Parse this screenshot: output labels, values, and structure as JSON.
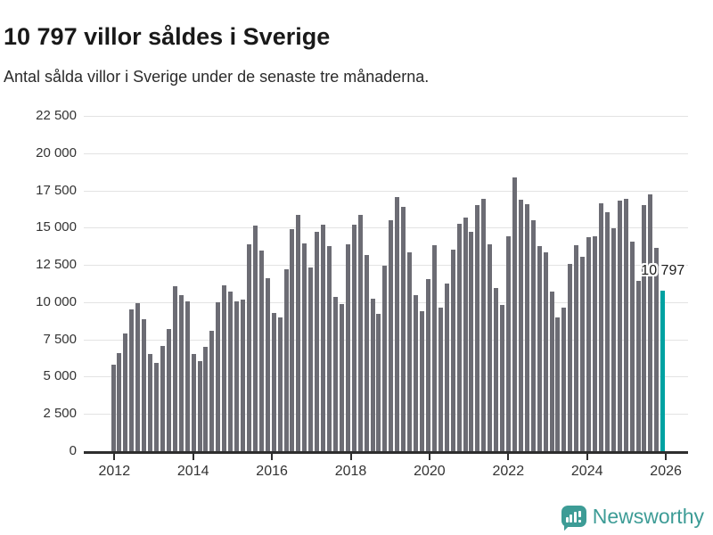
{
  "header": {
    "title": "10 797 villor såldes i Sverige",
    "subtitle": "Antal sålda villor i Sverige under de senaste tre månaderna."
  },
  "chart_data": {
    "type": "bar",
    "title": "10 797 villor såldes i Sverige",
    "xlabel": "",
    "ylabel": "",
    "ylim": [
      0,
      22500
    ],
    "grid": true,
    "legend": false,
    "y_ticks": [
      {
        "value": 0,
        "label": "0"
      },
      {
        "value": 2500,
        "label": "2 500"
      },
      {
        "value": 5000,
        "label": "5 000"
      },
      {
        "value": 7500,
        "label": "7 500"
      },
      {
        "value": 10000,
        "label": "10 000"
      },
      {
        "value": 12500,
        "label": "12 500"
      },
      {
        "value": 15000,
        "label": "15 000"
      },
      {
        "value": 17500,
        "label": "17 500"
      },
      {
        "value": 20000,
        "label": "20 000"
      },
      {
        "value": 22500,
        "label": "22 500"
      }
    ],
    "x_ticks": [
      {
        "year": 2012,
        "label": "2012"
      },
      {
        "year": 2014,
        "label": "2014"
      },
      {
        "year": 2016,
        "label": "2016"
      },
      {
        "year": 2018,
        "label": "2018"
      },
      {
        "year": 2020,
        "label": "2020"
      },
      {
        "year": 2022,
        "label": "2022"
      },
      {
        "year": 2024,
        "label": "2024"
      },
      {
        "year": 2026,
        "label": "2026"
      }
    ],
    "x_domain_years": [
      2012,
      2026
    ],
    "values": [
      5800,
      6600,
      7900,
      9500,
      9950,
      8850,
      6550,
      5900,
      7050,
      8220,
      11080,
      10500,
      10040,
      6550,
      6040,
      7010,
      8090,
      9980,
      11110,
      10690,
      10080,
      10160,
      13890,
      15130,
      13480,
      11600,
      9300,
      8960,
      12190,
      14880,
      15840,
      13920,
      12340,
      14710,
      15220,
      13760,
      10340,
      9900,
      13900,
      15200,
      15850,
      13150,
      10260,
      9230,
      12440,
      15520,
      17070,
      16400,
      13320,
      10460,
      9370,
      11580,
      13830,
      9650,
      11280,
      13520,
      15250,
      15670,
      14700,
      16510,
      16940,
      13860,
      10940,
      9790,
      14420,
      18390,
      16900,
      16550,
      15510,
      13760,
      13330,
      10740,
      8950,
      9650,
      12570,
      13820,
      13030,
      14360,
      14420,
      16610,
      16010,
      14950,
      16840,
      16940,
      14050,
      11460,
      16540,
      17240,
      13650,
      10797
    ],
    "highlight_index": 89,
    "annotation": {
      "text": "10 797",
      "value": 10797
    },
    "bar_color": "#6c6c74",
    "highlight_color": "#00a2a2",
    "gridline_color": "#e3e3e3",
    "axis_color": "#2e2e2e"
  },
  "branding": {
    "name": "Newsworthy",
    "color": "#3d9c96",
    "icon": "newsworthy-bar-chart-bubble-icon"
  }
}
